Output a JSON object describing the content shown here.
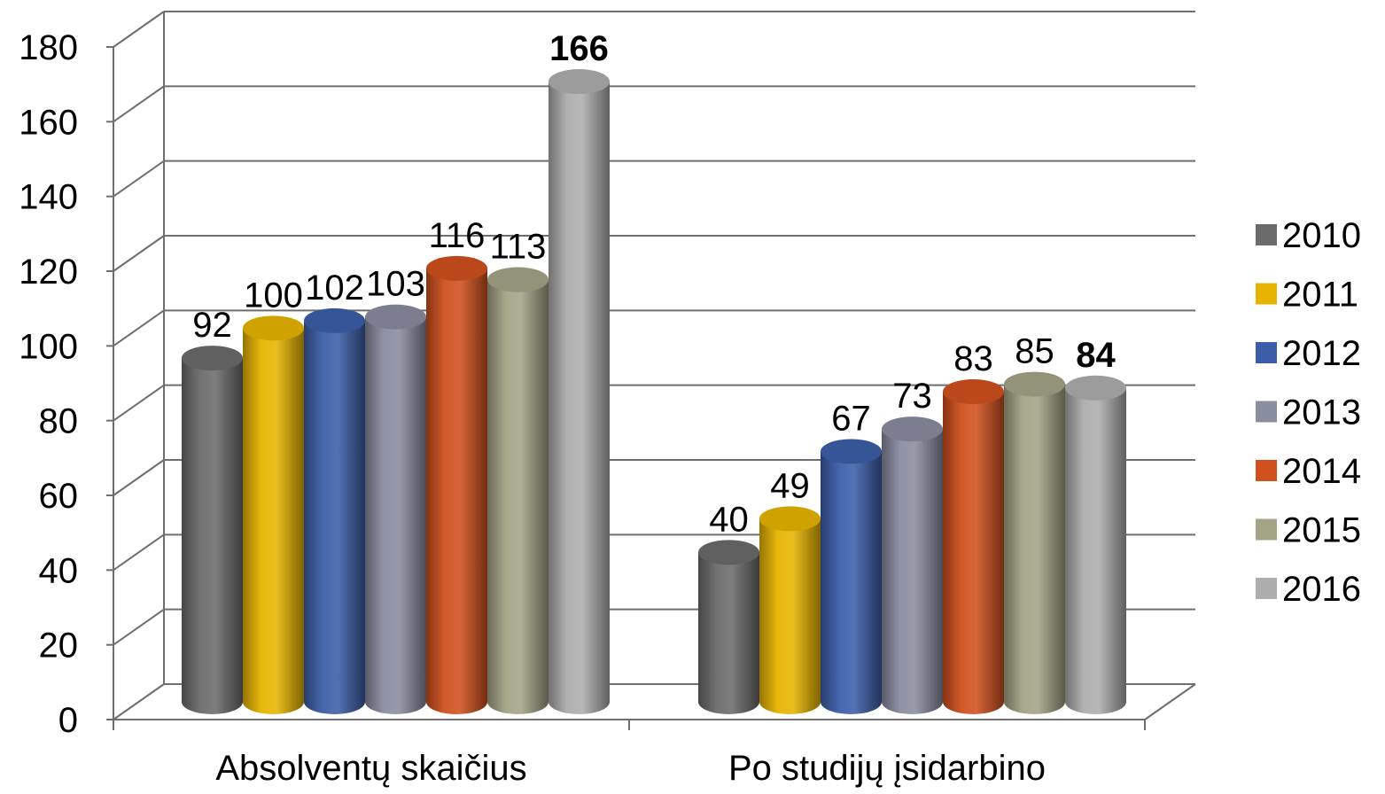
{
  "chart_data": {
    "type": "bar",
    "style": "3d-cylinder",
    "categories": [
      "Absolventų skaičius",
      "Po studijų įsidarbino"
    ],
    "series": [
      {
        "name": "2010",
        "color": "#6b6b6b",
        "values": [
          92,
          40
        ]
      },
      {
        "name": "2011",
        "color": "#e6b400",
        "values": [
          100,
          49
        ]
      },
      {
        "name": "2012",
        "color": "#3c5ea8",
        "values": [
          102,
          67
        ]
      },
      {
        "name": "2013",
        "color": "#8a8ca0",
        "values": [
          103,
          73
        ]
      },
      {
        "name": "2014",
        "color": "#d0501e",
        "values": [
          116,
          83
        ]
      },
      {
        "name": "2015",
        "color": "#a3a386",
        "values": [
          113,
          85
        ]
      },
      {
        "name": "2016",
        "color": "#adadad",
        "values": [
          166,
          84
        ]
      }
    ],
    "bold_labels": [
      [
        6,
        0
      ],
      [
        6,
        1
      ]
    ],
    "ylim": [
      0,
      180
    ],
    "yticks": [
      "0",
      "20",
      "40",
      "60",
      "80",
      "100",
      "120",
      "140",
      "160",
      "180"
    ],
    "grid": true,
    "legend": "right"
  }
}
